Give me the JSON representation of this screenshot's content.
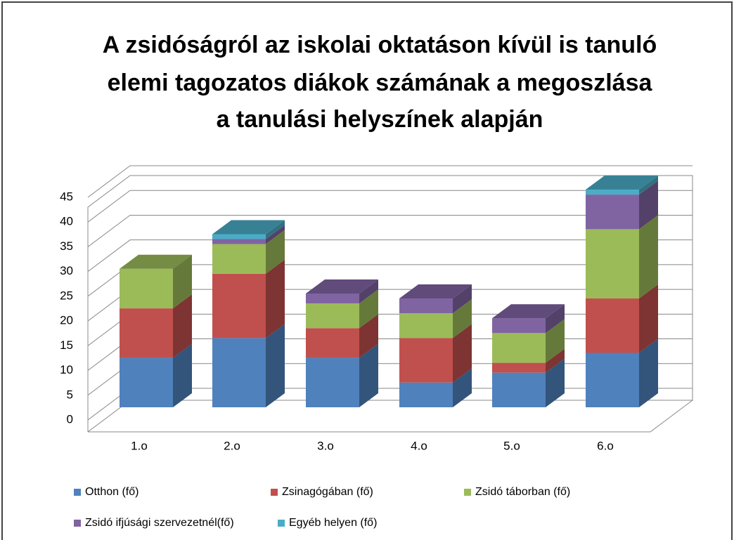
{
  "chart_data": {
    "type": "bar",
    "title": "A zsidóságról az iskolai oktatáson kívül  is tanuló",
    "subtitle": [
      "elemi tagozatos diákok számának a megoszlása",
      "a tanulási helyszínek alapján"
    ],
    "stacked": true,
    "categories": [
      "1.o",
      "2.o",
      "3.o",
      "4.o",
      "5.o",
      "6.o"
    ],
    "series": [
      {
        "name": "Otthon (fő)",
        "color": "#4f81bd",
        "values": [
          10,
          14,
          10,
          5,
          7,
          11
        ]
      },
      {
        "name": "Zsinagógában (fő)",
        "color": "#c0504d",
        "values": [
          10,
          13,
          6,
          9,
          2,
          11
        ]
      },
      {
        "name": "Zsidó táborban (fő)",
        "color": "#9bbb59",
        "values": [
          8,
          6,
          5,
          5,
          6,
          14
        ]
      },
      {
        "name": "Zsidó ifjúsági szervezetnél(fő)",
        "color": "#8064a2",
        "values": [
          0,
          1,
          2,
          3,
          3,
          7
        ]
      },
      {
        "name": "Egyéb helyen   (fő)",
        "color": "#4bacc6",
        "values": [
          0,
          1,
          0,
          0,
          0,
          1
        ]
      }
    ],
    "ylim": [
      0,
      45
    ],
    "yticks": [
      0,
      5,
      10,
      15,
      20,
      25,
      30,
      35,
      40,
      45
    ],
    "grid": true,
    "legend": "bottom"
  }
}
